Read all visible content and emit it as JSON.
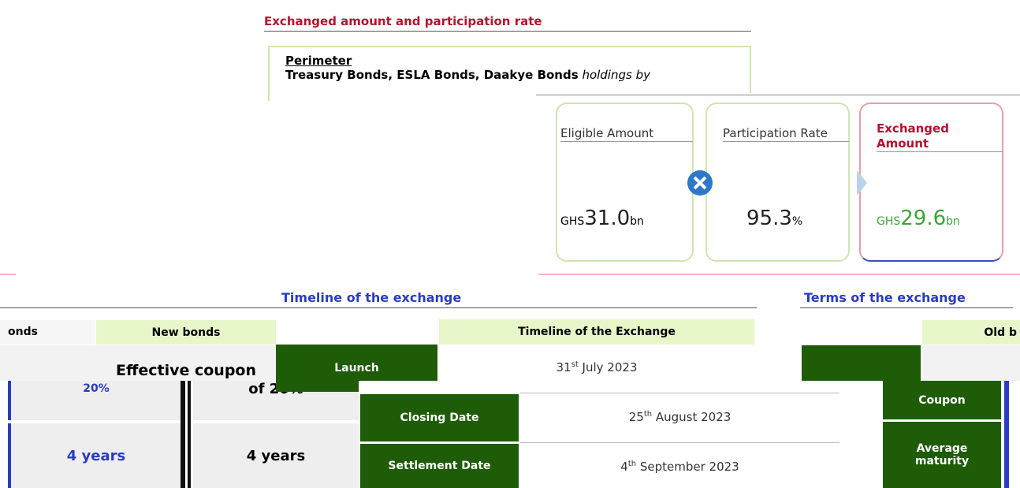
{
  "exchange_section": {
    "heading": "Exchanged amount and participation rate",
    "perimeter_label": "Perimeter",
    "perimeter_bold": "Treasury Bonds, ESLA Bonds, Daakye Bonds",
    "perimeter_italic": "holdings by",
    "cards": [
      {
        "label": "Eligible Amount",
        "prefix": "GHS",
        "value": "31.0",
        "suffix": "bn"
      },
      {
        "label": "Participation Rate",
        "prefix": "",
        "value": "95.3",
        "suffix": "%"
      },
      {
        "label": "Exchanged Amount",
        "prefix": "GHS",
        "value": "29.6",
        "suffix": "bn"
      }
    ]
  },
  "left_table": {
    "headers": [
      "onds",
      "New bonds"
    ],
    "rows": [
      [
        "20%",
        "Effective coupon",
        "of 20%"
      ],
      [
        "4 years",
        "4 years"
      ]
    ]
  },
  "timeline": {
    "heading": "Timeline of the exchange",
    "table_header": "Timeline of the Exchange",
    "rows": [
      {
        "event": "Launch",
        "day": "31",
        "ord": "st",
        "rest": " July 2023"
      },
      {
        "event": "Closing Date",
        "day": "25",
        "ord": "th",
        "rest": " August 2023"
      },
      {
        "event": "Settlement Date",
        "day": "4",
        "ord": "th",
        "rest": " September 2023"
      }
    ]
  },
  "terms": {
    "heading": "Terms of the exchange",
    "header": "Old b",
    "rows": [
      "Coupon",
      "Average maturity"
    ]
  }
}
